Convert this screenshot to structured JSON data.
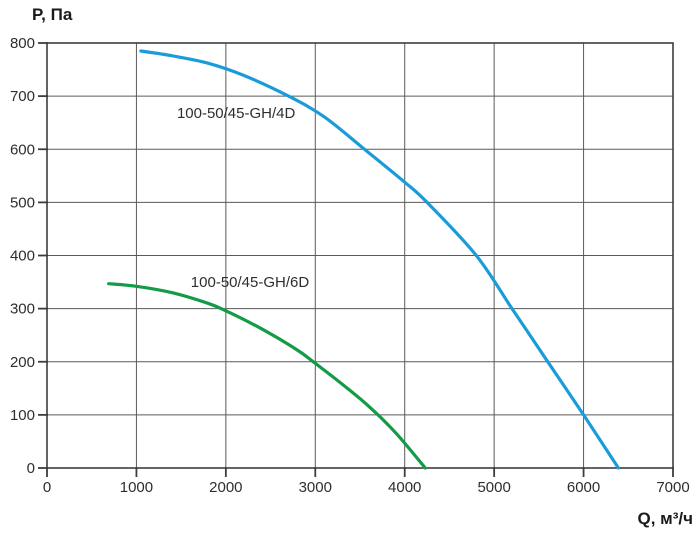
{
  "chart_data": {
    "type": "line",
    "title": "",
    "ylabel": "P, Па",
    "xlabel": "Q, м³/ч",
    "xlim": [
      0,
      7000
    ],
    "ylim": [
      0,
      800
    ],
    "x_ticks": [
      0,
      1000,
      2000,
      3000,
      4000,
      5000,
      6000,
      7000
    ],
    "y_ticks": [
      0,
      100,
      200,
      300,
      400,
      500,
      600,
      700,
      800
    ],
    "grid": true,
    "legend_position": "inline-labels",
    "series": [
      {
        "name": "100-50/45-GH/4D",
        "color": "#1b9cd9",
        "points": [
          [
            1050,
            785
          ],
          [
            1400,
            776
          ],
          [
            1800,
            762
          ],
          [
            2200,
            739
          ],
          [
            2700,
            700
          ],
          [
            3100,
            661
          ],
          [
            3550,
            600
          ],
          [
            4000,
            538
          ],
          [
            4250,
            500
          ],
          [
            4800,
            400
          ],
          [
            5200,
            300
          ],
          [
            5600,
            200
          ],
          [
            6000,
            100
          ],
          [
            6390,
            0
          ]
        ]
      },
      {
        "name": "100-50/45-GH/6D",
        "color": "#149b47",
        "points": [
          [
            690,
            347
          ],
          [
            1000,
            342
          ],
          [
            1400,
            330
          ],
          [
            1800,
            310
          ],
          [
            2000,
            296
          ],
          [
            2400,
            262
          ],
          [
            2800,
            222
          ],
          [
            3000,
            197
          ],
          [
            3300,
            158
          ],
          [
            3600,
            116
          ],
          [
            3900,
            66
          ],
          [
            4230,
            0
          ]
        ]
      }
    ],
    "annotations": [
      {
        "text": "100-50/45-GH/4D",
        "q": 2115,
        "p": 668
      },
      {
        "text": "100-50/45-GH/6D",
        "q": 2270,
        "p": 350
      }
    ]
  },
  "colors": {
    "grid": "#5a5a5a",
    "axis": "#3d3d3d",
    "text": "#2e2e2e",
    "background": "#ffffff"
  }
}
